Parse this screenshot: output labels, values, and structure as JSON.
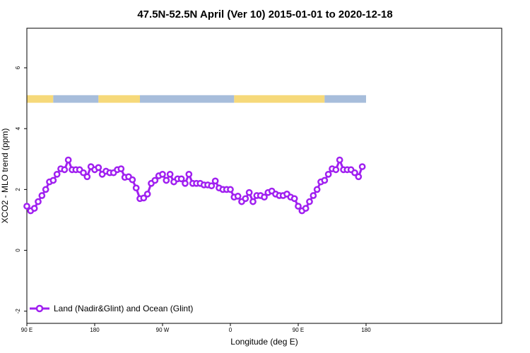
{
  "chart_data": {
    "type": "line",
    "title": "47.5N-52.5N April (Ver 10)   2015-01-01 to 2020-12-18",
    "xlabel": "Longitude (deg E)",
    "ylabel": "XCO2 - MLO trend (ppm)",
    "xlim": [
      -90,
      540
    ],
    "ylim": [
      -2.4,
      7.3
    ],
    "x_ticks": [
      {
        "value": -90,
        "label": "90 E"
      },
      {
        "value": 0,
        "label": "180"
      },
      {
        "value": 90,
        "label": "90 W"
      },
      {
        "value": 180,
        "label": "0"
      },
      {
        "value": 270,
        "label": "90 E"
      },
      {
        "value": 360,
        "label": "180"
      }
    ],
    "y_ticks": [
      {
        "value": -2,
        "label": "-2"
      },
      {
        "value": 0,
        "label": "0"
      },
      {
        "value": 2,
        "label": "2"
      },
      {
        "value": 4,
        "label": "4"
      },
      {
        "value": 6,
        "label": "6"
      }
    ],
    "grid": false,
    "legend_position": "bottom-left",
    "series": [
      {
        "name": "Land (Nadir&Glint) and Ocean (Glint)",
        "color": "#a020f0",
        "marker": "open-circle",
        "x": [
          -90,
          -85,
          -80,
          -75,
          -70,
          -65,
          -60,
          -55,
          -50,
          -45,
          -40,
          -35,
          -30,
          -25,
          -20,
          -15,
          -10,
          -5,
          0,
          5,
          10,
          15,
          20,
          25,
          30,
          35,
          40,
          45,
          50,
          55,
          60,
          65,
          70,
          75,
          80,
          85,
          90,
          95,
          100,
          105,
          110,
          115,
          120,
          125,
          130,
          135,
          140,
          145,
          150,
          155,
          160,
          165,
          170,
          175,
          180,
          185,
          190,
          195,
          200,
          205,
          210,
          215,
          220,
          225,
          230,
          235,
          240,
          245,
          250,
          255,
          260,
          265,
          270,
          275,
          280,
          285,
          290,
          295,
          300,
          305,
          310,
          315,
          320,
          325,
          330,
          335,
          340,
          345,
          350,
          355
        ],
        "values": [
          1.45,
          1.3,
          1.38,
          1.6,
          1.8,
          2.0,
          2.25,
          2.3,
          2.5,
          2.68,
          2.65,
          2.97,
          2.65,
          2.65,
          2.65,
          2.55,
          2.42,
          2.75,
          2.65,
          2.72,
          2.5,
          2.6,
          2.55,
          2.55,
          2.65,
          2.68,
          2.4,
          2.42,
          2.32,
          2.05,
          1.7,
          1.72,
          1.85,
          2.2,
          2.3,
          2.45,
          2.5,
          2.3,
          2.5,
          2.25,
          2.35,
          2.35,
          2.2,
          2.5,
          2.2,
          2.2,
          2.2,
          2.15,
          2.15,
          2.12,
          2.28,
          2.05,
          2.0,
          2.0,
          2.0,
          1.75,
          1.78,
          1.6,
          1.7,
          1.9,
          1.6,
          1.8,
          1.8,
          1.75,
          1.9,
          1.95,
          1.85,
          1.8,
          1.8,
          1.85,
          1.75,
          1.7,
          1.45,
          1.3,
          1.38,
          1.6,
          1.8,
          2.0,
          2.25,
          2.3,
          2.5,
          2.68,
          2.65,
          2.97,
          2.65,
          2.65,
          2.65,
          2.55,
          2.42,
          2.75
        ]
      }
    ],
    "surface_band": {
      "y_range": [
        4.85,
        5.1
      ],
      "land_color": "#f6d97a",
      "ocean_color": "#a7bddb",
      "segments": [
        {
          "from": -90,
          "to": -55,
          "type": "land"
        },
        {
          "from": -55,
          "to": 5,
          "type": "ocean"
        },
        {
          "from": 5,
          "to": 60,
          "type": "land"
        },
        {
          "from": 60,
          "to": 185,
          "type": "ocean"
        },
        {
          "from": 185,
          "to": 305,
          "type": "land"
        },
        {
          "from": 305,
          "to": 360,
          "type": "ocean"
        }
      ]
    }
  }
}
